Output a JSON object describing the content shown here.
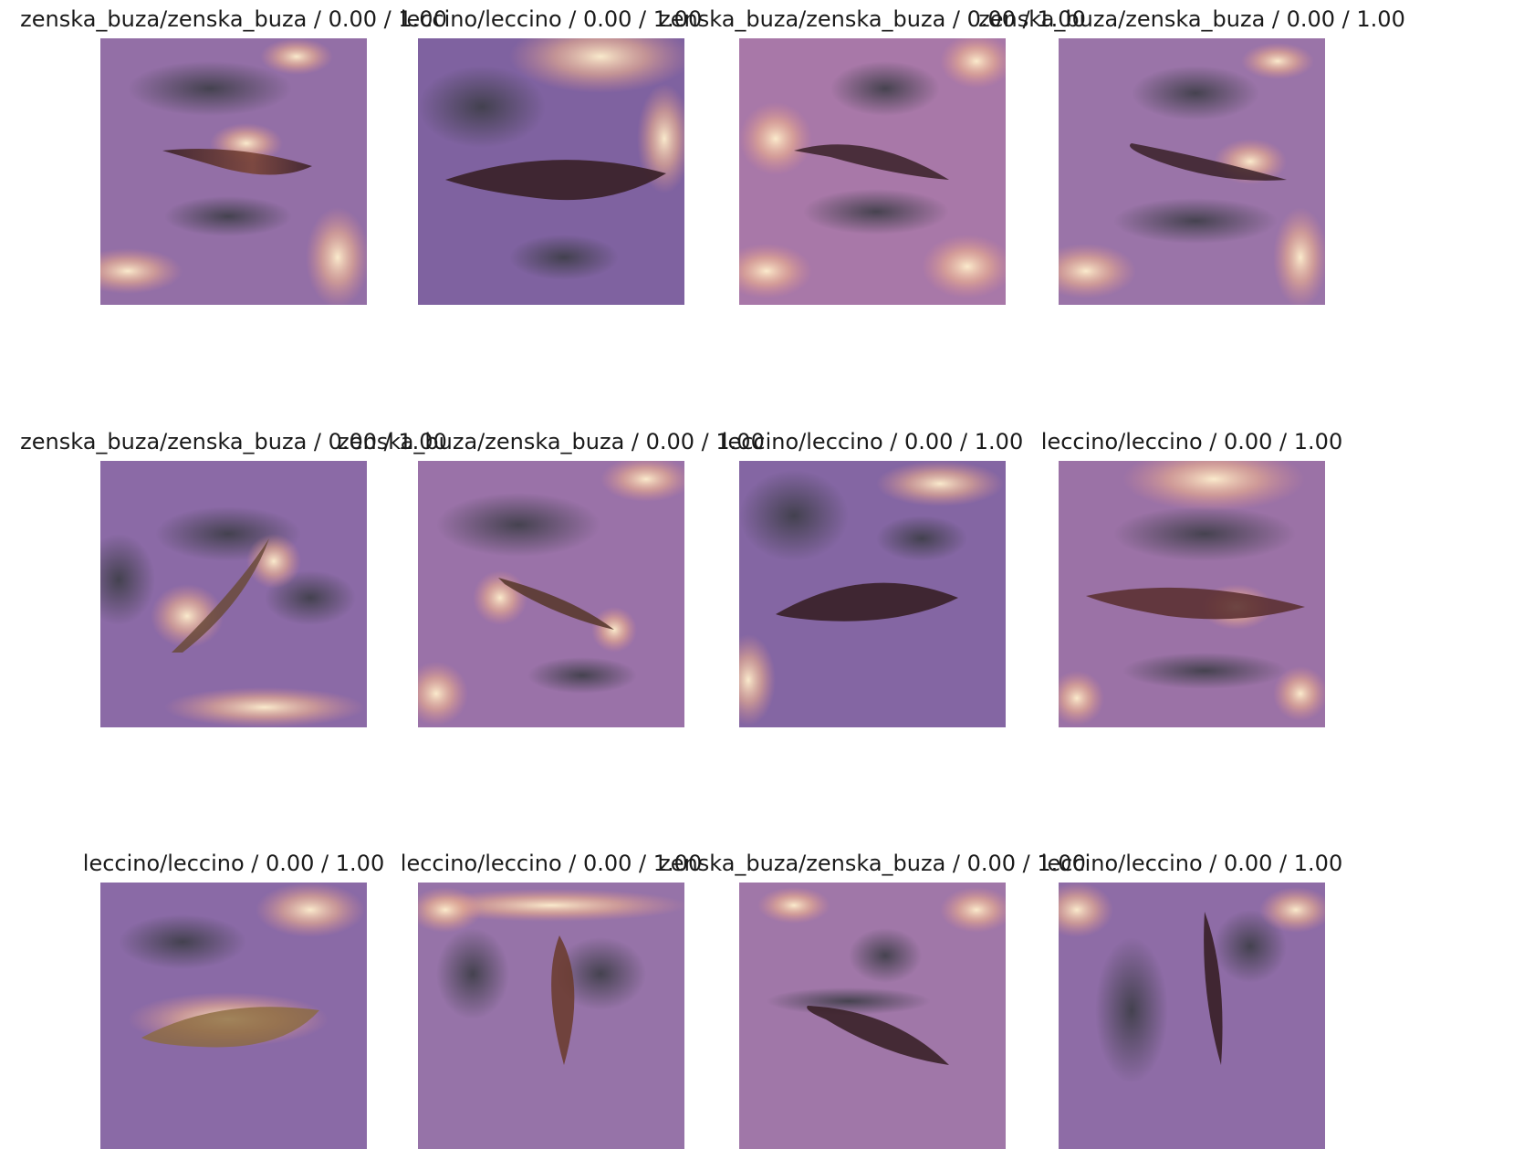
{
  "panels": [
    {
      "title": "zenska_buza/zenska_buza / 0.00 / 1.00"
    },
    {
      "title": "leccino/leccino / 0.00 / 1.00"
    },
    {
      "title": "zenska_buza/zenska_buza / 0.00 / 1.00"
    },
    {
      "title": "zenska_buza/zenska_buza / 0.00 / 1.00"
    },
    {
      "title": "zenska_buza/zenska_buza / 0.00 / 1.00"
    },
    {
      "title": "zenska_buza/zenska_buza / 0.00 / 1.00"
    },
    {
      "title": "leccino/leccino / 0.00 / 1.00"
    },
    {
      "title": "leccino/leccino / 0.00 / 1.00"
    },
    {
      "title": "leccino/leccino / 0.00 / 1.00"
    },
    {
      "title": "leccino/leccino / 0.00 / 1.00"
    },
    {
      "title": "zenska_buza/zenska_buza / 0.00 / 1.00"
    },
    {
      "title": "leccino/leccino / 0.00 / 1.00"
    }
  ],
  "colors": {
    "heat_cool": "#7a5c9c",
    "heat_dark": "#3f3f4a",
    "heat_warm": "#d98a86",
    "heat_hot": "#f6dcb6",
    "leaf": "#3a2128",
    "leaf_lit": "#c77a4a"
  }
}
